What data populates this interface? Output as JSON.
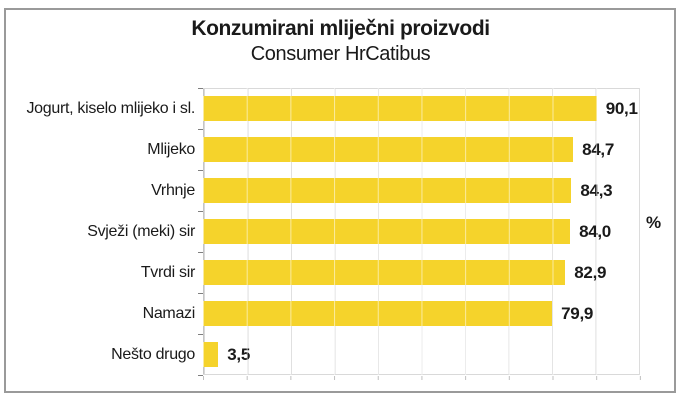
{
  "chart_data": {
    "type": "bar",
    "orientation": "horizontal",
    "title": "Konzumirani mliječni proizvodi",
    "subtitle": "Consumer HrCatibus",
    "categories": [
      "Jogurt, kiselo mlijeko i sl.",
      "Mlijeko",
      "Vrhnje",
      "Svježi (meki) sir",
      "Tvrdi sir",
      "Namazi",
      "Nešto drugo"
    ],
    "values": [
      90.1,
      84.7,
      84.3,
      84.0,
      82.9,
      79.9,
      3.5
    ],
    "value_labels": [
      "90,1",
      "84,7",
      "84,3",
      "84,0",
      "82,9",
      "79,9",
      "3,5"
    ],
    "axis_unit_label": "%",
    "xlim": [
      0,
      100
    ],
    "gridline_interval": 10,
    "grid": true,
    "legend": "none",
    "bar_color": "#F5D32B",
    "gridline_color": "#d9d9d9",
    "axis_line_color": "#7f7f7f",
    "frame_border_color": "#9a9a9a"
  }
}
